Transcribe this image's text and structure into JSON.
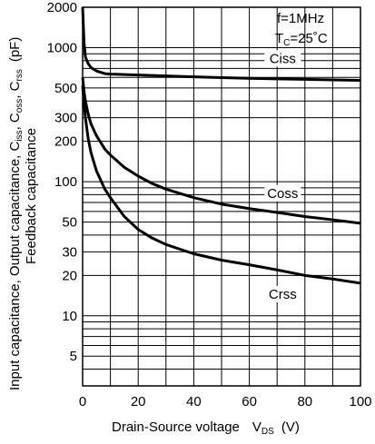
{
  "chart_data": {
    "type": "line",
    "xlabel": "Drain-Source voltage",
    "xlabel_symbol": "V",
    "xlabel_symbol_sub": "DS",
    "xlabel_unit": "(V)",
    "ylabel_line1_prefix": "Input capacitance, Output capacitance, C",
    "ylabel_line1_sub1": "iss",
    "ylabel_line1_mid": ", C",
    "ylabel_line1_sub2": "oss",
    "ylabel_line1_mid2": ", C",
    "ylabel_line1_sub3": "rss",
    "ylabel_line1_unit": "(pF)",
    "ylabel_line2": "Feedback capacitance",
    "xlim": [
      0,
      100
    ],
    "ylim": [
      3,
      2000
    ],
    "yscale": "log",
    "grid": true,
    "x_ticks": [
      "0",
      "20",
      "40",
      "60",
      "80",
      "100"
    ],
    "y_ticks": [
      "2000",
      "1000",
      "500",
      "300",
      "200",
      "100",
      "50",
      "30",
      "20",
      "10",
      "5"
    ],
    "annotations": {
      "freq": "f=1MHz",
      "temp_prefix": "T",
      "temp_sub": "C",
      "temp_suffix": "=25˚C"
    },
    "series": [
      {
        "name": "Ciss",
        "color": "#000000",
        "x": [
          0,
          0.5,
          1,
          2,
          3,
          5,
          8,
          10,
          15,
          20,
          30,
          40,
          50,
          60,
          70,
          80,
          90,
          100
        ],
        "y": [
          2000,
          1100,
          850,
          760,
          710,
          670,
          640,
          635,
          630,
          625,
          615,
          605,
          597,
          590,
          585,
          580,
          575,
          570
        ]
      },
      {
        "name": "Coss",
        "color": "#000000",
        "x": [
          0,
          0.5,
          1,
          2,
          3,
          5,
          8,
          10,
          15,
          20,
          25,
          30,
          40,
          50,
          60,
          70,
          80,
          90,
          100
        ],
        "y": [
          600,
          470,
          400,
          320,
          270,
          220,
          175,
          158,
          128,
          110,
          97,
          88,
          76,
          68,
          63,
          59,
          55,
          52,
          49
        ]
      },
      {
        "name": "Crss",
        "color": "#000000",
        "x": [
          0,
          0.5,
          1,
          2,
          3,
          5,
          8,
          10,
          15,
          20,
          25,
          30,
          40,
          50,
          60,
          70,
          80,
          90,
          100
        ],
        "y": [
          520,
          390,
          300,
          210,
          165,
          120,
          88,
          76,
          55,
          44,
          38,
          34,
          29,
          26,
          24,
          22,
          20,
          18.8,
          17.5
        ]
      }
    ],
    "series_labels": [
      {
        "name": "Ciss",
        "x": 72,
        "y": 830
      },
      {
        "name": "Coss",
        "x": 72,
        "y": 82
      },
      {
        "name": "Crss",
        "x": 72,
        "y": 14.5
      }
    ]
  }
}
